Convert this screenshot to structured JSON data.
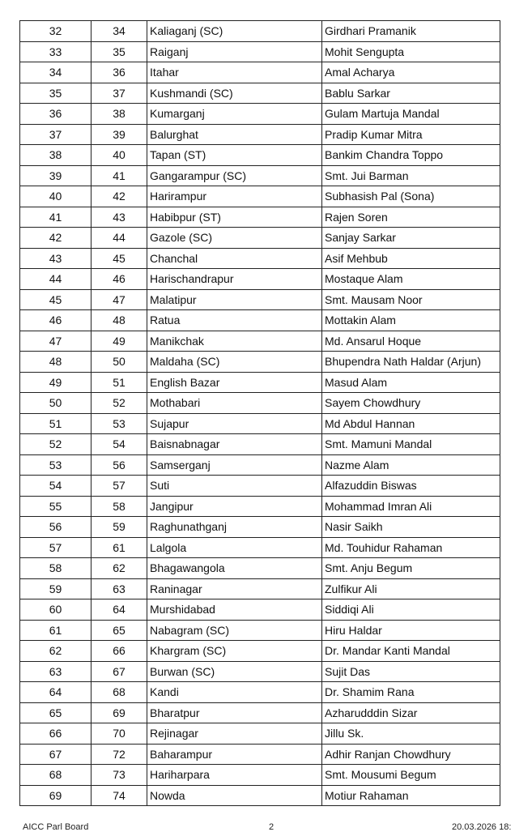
{
  "table": {
    "rows": [
      [
        "32",
        "34",
        "Kaliaganj (SC)",
        "Girdhari Pramanik"
      ],
      [
        "33",
        "35",
        "Raiganj",
        "Mohit Sengupta"
      ],
      [
        "34",
        "36",
        "Itahar",
        "Amal Acharya"
      ],
      [
        "35",
        "37",
        "Kushmandi (SC)",
        "Bablu Sarkar"
      ],
      [
        "36",
        "38",
        "Kumarganj",
        "Gulam Martuja Mandal"
      ],
      [
        "37",
        "39",
        "Balurghat",
        "Pradip Kumar Mitra"
      ],
      [
        "38",
        "40",
        "Tapan (ST)",
        "Bankim Chandra Toppo"
      ],
      [
        "39",
        "41",
        "Gangarampur (SC)",
        "Smt. Jui Barman"
      ],
      [
        "40",
        "42",
        "Harirampur",
        "Subhasish Pal (Sona)"
      ],
      [
        "41",
        "43",
        "Habibpur (ST)",
        "Rajen Soren"
      ],
      [
        "42",
        "44",
        "Gazole (SC)",
        "Sanjay Sarkar"
      ],
      [
        "43",
        "45",
        "Chanchal",
        "Asif Mehbub"
      ],
      [
        "44",
        "46",
        "Harischandrapur",
        "Mostaque Alam"
      ],
      [
        "45",
        "47",
        "Malatipur",
        "Smt. Mausam Noor"
      ],
      [
        "46",
        "48",
        "Ratua",
        "Mottakin Alam"
      ],
      [
        "47",
        "49",
        "Manikchak",
        "Md. Ansarul Hoque"
      ],
      [
        "48",
        "50",
        "Maldaha (SC)",
        "Bhupendra Nath Haldar (Arjun)"
      ],
      [
        "49",
        "51",
        "English Bazar",
        "Masud Alam"
      ],
      [
        "50",
        "52",
        "Mothabari",
        "Sayem Chowdhury"
      ],
      [
        "51",
        "53",
        "Sujapur",
        "Md Abdul Hannan"
      ],
      [
        "52",
        "54",
        "Baisnabnagar",
        "Smt. Mamuni Mandal"
      ],
      [
        "53",
        "56",
        "Samserganj",
        "Nazme Alam"
      ],
      [
        "54",
        "57",
        "Suti",
        "Alfazuddin Biswas"
      ],
      [
        "55",
        "58",
        "Jangipur",
        "Mohammad Imran Ali"
      ],
      [
        "56",
        "59",
        "Raghunathganj",
        "Nasir Saikh"
      ],
      [
        "57",
        "61",
        "Lalgola",
        "Md. Touhidur Rahaman"
      ],
      [
        "58",
        "62",
        "Bhagawangola",
        "Smt. Anju Begum"
      ],
      [
        "59",
        "63",
        "Raninagar",
        "Zulfikur Ali"
      ],
      [
        "60",
        "64",
        "Murshidabad",
        "Siddiqi Ali"
      ],
      [
        "61",
        "65",
        "Nabagram (SC)",
        "Hiru Haldar"
      ],
      [
        "62",
        "66",
        "Khargram (SC)",
        "Dr. Mandar Kanti Mandal"
      ],
      [
        "63",
        "67",
        "Burwan (SC)",
        "Sujit Das"
      ],
      [
        "64",
        "68",
        "Kandi",
        "Dr. Shamim Rana"
      ],
      [
        "65",
        "69",
        "Bharatpur",
        "Azharudddin Sizar"
      ],
      [
        "66",
        "70",
        "Rejinagar",
        "Jillu Sk."
      ],
      [
        "67",
        "72",
        "Baharampur",
        "Adhir Ranjan Chowdhury"
      ],
      [
        "68",
        "73",
        "Hariharpara",
        "Smt. Mousumi Begum"
      ],
      [
        "69",
        "74",
        "Nowda",
        "Motiur Rahaman"
      ]
    ]
  },
  "footer": {
    "left": "AICC Parl Board",
    "center": "2",
    "right": "20.03.2026 18:"
  }
}
